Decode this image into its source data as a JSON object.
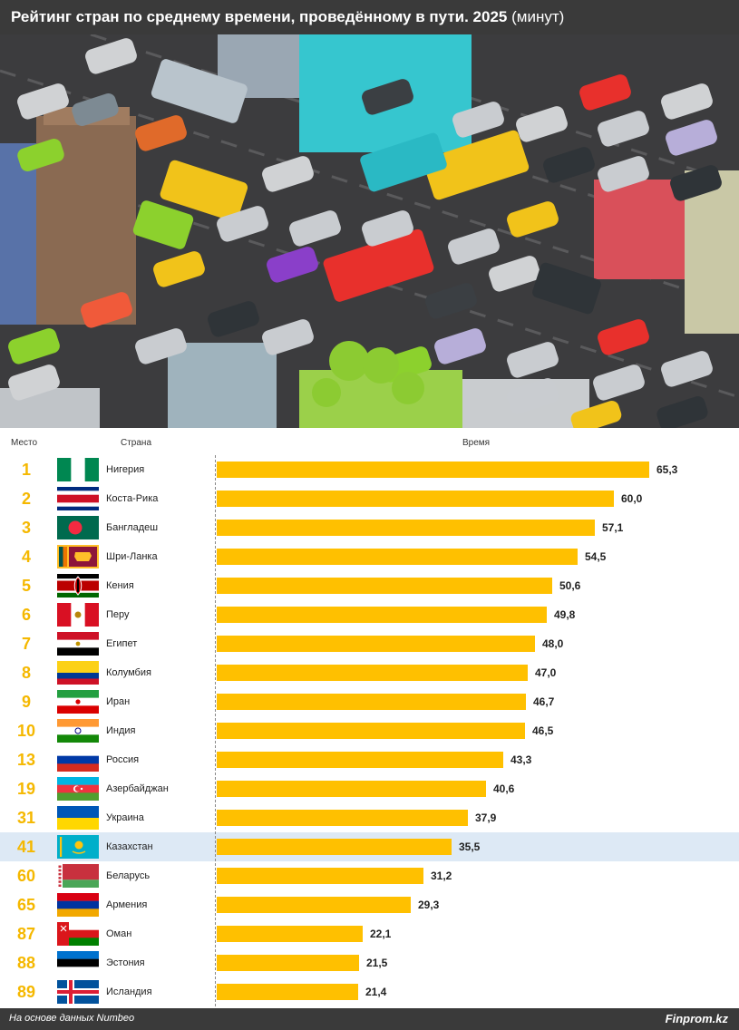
{
  "header": {
    "title_bold": "Рейтинг стран по среднему времени, проведённому в пути. 2025",
    "title_unit": "(минут)"
  },
  "columns": {
    "rank": "Место",
    "country": "Страна",
    "time": "Время"
  },
  "footer": {
    "source": "На основе данных Numbeo",
    "brand": "Finprom.kz"
  },
  "colors": {
    "bar": "#ffc000",
    "rank": "#f5b800",
    "highlight_row": "#dde9f5",
    "header_bg": "#3a3a3a"
  },
  "chart_data": {
    "type": "bar",
    "orientation": "horizontal",
    "title": "Рейтинг стран по среднему времени, проведённому в пути. 2025 (минут)",
    "categories": [
      "Нигерия",
      "Коста-Рика",
      "Бангладеш",
      "Шри-Ланка",
      "Кения",
      "Перу",
      "Египет",
      "Колумбия",
      "Иран",
      "Индия",
      "Россия",
      "Азербайджан",
      "Украина",
      "Казахстан",
      "Беларусь",
      "Армения",
      "Оман",
      "Эстония",
      "Исландия"
    ],
    "ranks": [
      "1",
      "2",
      "3",
      "4",
      "5",
      "6",
      "7",
      "8",
      "9",
      "10",
      "13",
      "19",
      "31",
      "41",
      "60",
      "65",
      "87",
      "88",
      "89"
    ],
    "values": [
      65.3,
      60.0,
      57.1,
      54.5,
      50.6,
      49.8,
      48.0,
      47.0,
      46.7,
      46.5,
      43.3,
      40.6,
      37.9,
      35.5,
      31.2,
      29.3,
      22.1,
      21.5,
      21.4
    ],
    "value_labels": [
      "65,3",
      "60,0",
      "57,1",
      "54,5",
      "50,6",
      "49,8",
      "48,0",
      "47,0",
      "46,7",
      "46,5",
      "43,3",
      "40,6",
      "37,9",
      "35,5",
      "31,2",
      "29,3",
      "22,1",
      "21,5",
      "21,4"
    ],
    "flags": [
      "nigeria-flag",
      "costa-rica-flag",
      "bangladesh-flag",
      "sri-lanka-flag",
      "kenya-flag",
      "peru-flag",
      "egypt-flag",
      "colombia-flag",
      "iran-flag",
      "india-flag",
      "russia-flag",
      "azerbaijan-flag",
      "ukraine-flag",
      "kazakhstan-flag",
      "belarus-flag",
      "armenia-flag",
      "oman-flag",
      "estonia-flag",
      "iceland-flag"
    ],
    "highlighted": "Казахстан",
    "xlim": [
      0,
      65.3
    ],
    "grid": false,
    "legend": "none"
  }
}
